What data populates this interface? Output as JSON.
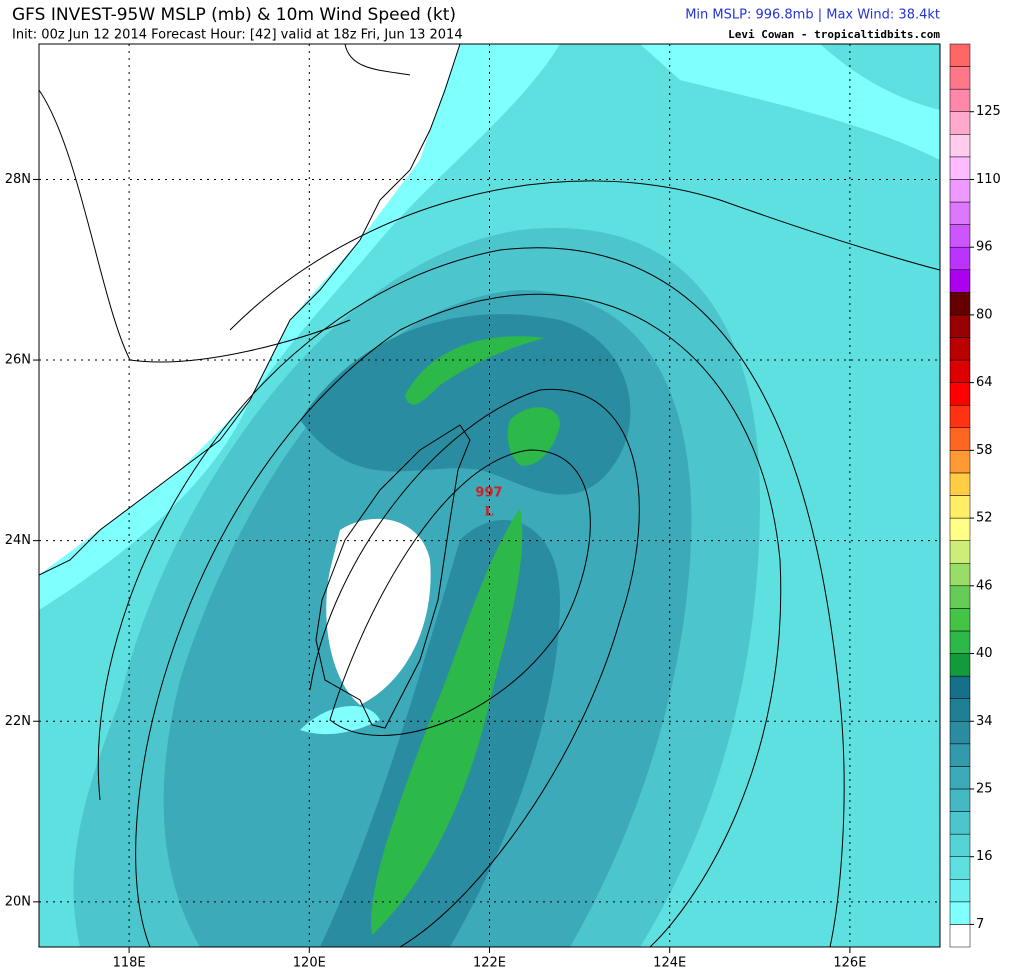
{
  "header": {
    "title": "GFS INVEST-95W MSLP (mb) & 10m Wind Speed (kt)",
    "subtitle": "Init: 00z Jun 12 2014 Forecast Hour: [42] valid at 18z Fri, Jun 13 2014",
    "stats": "Min MSLP: 996.8mb | Max Wind: 38.4kt",
    "credit": "Levi Cowan - tropicaltidbits.com"
  },
  "map": {
    "lonlim": [
      117,
      127
    ],
    "latlim": [
      19.5,
      29.5
    ],
    "lon_ticks": [
      {
        "value": 118,
        "label": "118E"
      },
      {
        "value": 120,
        "label": "120E"
      },
      {
        "value": 122,
        "label": "122E"
      },
      {
        "value": 124,
        "label": "124E"
      },
      {
        "value": 126,
        "label": "126E"
      }
    ],
    "lat_ticks": [
      {
        "value": 20,
        "label": "20N"
      },
      {
        "value": 22,
        "label": "22N"
      },
      {
        "value": 24,
        "label": "24N"
      },
      {
        "value": 26,
        "label": "26N"
      },
      {
        "value": 28,
        "label": "28N"
      }
    ],
    "low": {
      "pressure": 997,
      "symbol": "L"
    }
  },
  "colorbar": {
    "ticks": [
      7,
      16,
      25,
      34,
      40,
      46,
      52,
      58,
      64,
      80,
      96,
      110,
      125
    ],
    "colors": [
      "#ffffff",
      "#80ffff",
      "#6ef0f0",
      "#5fe0e0",
      "#55d4d8",
      "#4cc6cc",
      "#44b8c2",
      "#3caab8",
      "#3399ac",
      "#2a8ca0",
      "#1f7f94",
      "#147088",
      "#139a3a",
      "#2db84a",
      "#44c444",
      "#66cc55",
      "#99dd66",
      "#ccee77",
      "#ffff88",
      "#ffee66",
      "#ffcc44",
      "#ff9933",
      "#ff6622",
      "#ff3311",
      "#ff0000",
      "#dd0000",
      "#bb0000",
      "#990000",
      "#660000",
      "#aa00ee",
      "#bb33ff",
      "#cc55ff",
      "#dd77ff",
      "#ee99ff",
      "#ffbbff",
      "#ffccee",
      "#ffaacc",
      "#ff88aa",
      "#ff7788",
      "#ff6666"
    ]
  }
}
